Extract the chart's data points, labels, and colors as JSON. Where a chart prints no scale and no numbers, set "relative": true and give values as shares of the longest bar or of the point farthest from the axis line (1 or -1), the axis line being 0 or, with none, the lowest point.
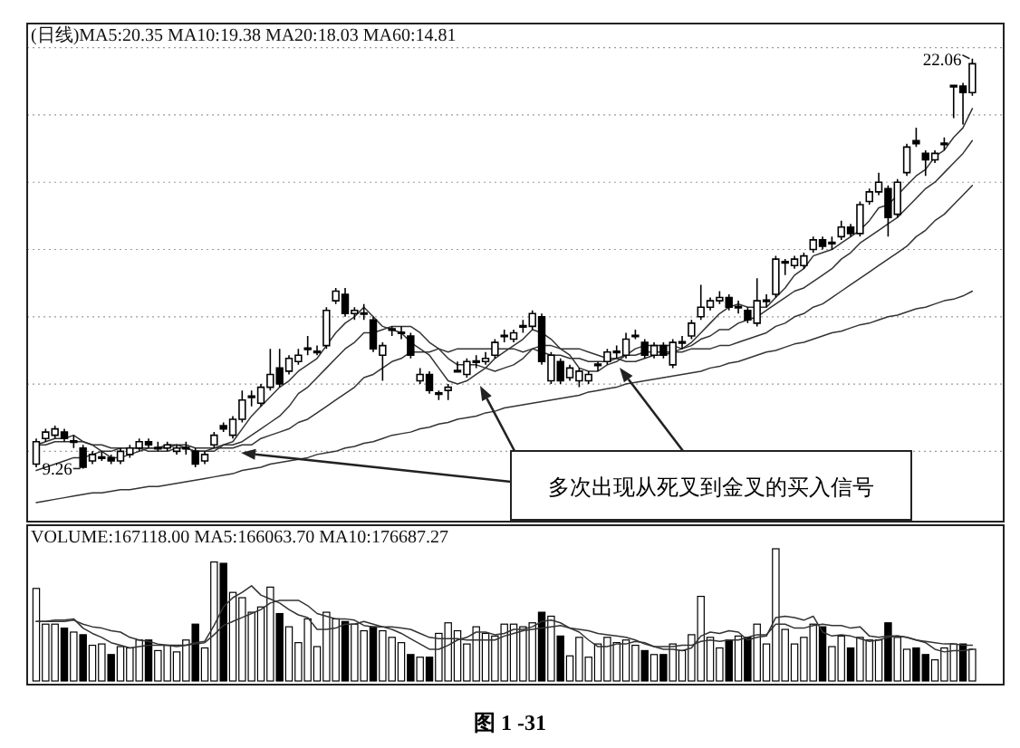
{
  "chart_data": [
    {
      "type": "candlestick",
      "title": "(日线)MA5:20.35 MA10:19.38 MA20:18.03 MA60:14.81",
      "grid": "y",
      "categories": [
        null,
        null,
        null,
        null,
        null,
        null,
        null,
        null,
        null,
        null,
        null,
        null,
        null,
        null,
        null,
        null,
        null,
        null,
        null,
        null,
        null,
        null,
        null,
        null,
        null,
        null,
        null,
        null,
        null,
        null,
        null,
        null,
        null,
        null,
        null,
        null,
        null,
        null,
        null,
        null,
        null,
        null,
        null,
        null,
        null,
        null,
        null,
        null,
        null,
        null,
        null,
        null,
        null,
        null,
        null,
        null,
        null,
        null,
        null,
        null,
        null,
        null,
        null,
        null,
        null,
        null,
        null,
        null,
        null,
        null,
        null,
        null,
        null,
        null,
        null,
        null,
        null,
        null,
        null,
        null,
        null,
        null,
        null,
        null,
        null,
        null,
        null,
        null,
        null,
        null,
        null,
        null,
        null,
        null,
        null,
        null,
        null,
        null,
        null,
        null,
        null
      ],
      "ohlc": [
        [
          9.4,
          10.2,
          9.3,
          10.1
        ],
        [
          10.2,
          10.5,
          10.1,
          10.4
        ],
        [
          10.3,
          10.6,
          10.2,
          10.5
        ],
        [
          10.4,
          10.5,
          10.1,
          10.2
        ],
        [
          10.1,
          10.3,
          9.9,
          10.1
        ],
        [
          9.9,
          10.0,
          9.26,
          9.3
        ],
        [
          9.5,
          9.8,
          9.4,
          9.7
        ],
        [
          9.6,
          9.8,
          9.5,
          9.6
        ],
        [
          9.6,
          9.7,
          9.4,
          9.5
        ],
        [
          9.5,
          9.9,
          9.4,
          9.8
        ],
        [
          9.7,
          10.0,
          9.6,
          9.9
        ],
        [
          9.9,
          10.2,
          9.8,
          10.1
        ],
        [
          10.1,
          10.2,
          9.9,
          10.0
        ],
        [
          9.9,
          10.1,
          9.8,
          9.9
        ],
        [
          9.9,
          10.1,
          9.8,
          10.0
        ],
        [
          9.8,
          10.0,
          9.7,
          9.9
        ],
        [
          9.9,
          10.1,
          9.7,
          9.9
        ],
        [
          9.8,
          9.9,
          9.3,
          9.4
        ],
        [
          9.5,
          9.8,
          9.4,
          9.7
        ],
        [
          10.0,
          10.4,
          9.9,
          10.3
        ],
        [
          10.6,
          10.7,
          10.4,
          10.5
        ],
        [
          10.3,
          10.9,
          10.2,
          10.8
        ],
        [
          10.8,
          11.7,
          10.7,
          11.4
        ],
        [
          11.5,
          11.7,
          11.2,
          11.5
        ],
        [
          11.3,
          11.9,
          11.2,
          11.8
        ],
        [
          11.8,
          13.0,
          11.7,
          12.2
        ],
        [
          12.4,
          13.0,
          11.8,
          11.9
        ],
        [
          12.3,
          12.8,
          12.2,
          12.7
        ],
        [
          12.6,
          13.0,
          12.5,
          12.8
        ],
        [
          13.0,
          13.4,
          12.8,
          13.0
        ],
        [
          12.9,
          13.1,
          12.8,
          12.9
        ],
        [
          13.1,
          14.3,
          13.0,
          14.2
        ],
        [
          14.5,
          14.9,
          14.4,
          14.8
        ],
        [
          14.7,
          14.9,
          14.0,
          14.1
        ],
        [
          14.1,
          14.3,
          13.9,
          14.2
        ],
        [
          14.1,
          14.4,
          13.9,
          14.1
        ],
        [
          13.9,
          14.0,
          12.9,
          13.0
        ],
        [
          12.8,
          13.2,
          12.0,
          13.1
        ],
        [
          13.6,
          13.7,
          13.4,
          13.6
        ],
        [
          13.5,
          13.7,
          13.3,
          13.5
        ],
        [
          13.4,
          13.5,
          12.7,
          12.8
        ],
        [
          12.0,
          12.4,
          11.9,
          12.2
        ],
        [
          12.2,
          12.3,
          11.6,
          11.7
        ],
        [
          11.6,
          11.7,
          11.4,
          11.6
        ],
        [
          11.7,
          11.9,
          11.4,
          11.8
        ],
        [
          12.3,
          12.6,
          12.3,
          12.3
        ],
        [
          12.2,
          12.7,
          12.1,
          12.6
        ],
        [
          12.6,
          12.8,
          12.4,
          12.6
        ],
        [
          12.6,
          12.9,
          12.5,
          12.7
        ],
        [
          12.8,
          13.3,
          12.7,
          13.2
        ],
        [
          13.4,
          13.6,
          13.2,
          13.4
        ],
        [
          13.3,
          13.6,
          13.2,
          13.5
        ],
        [
          13.7,
          13.9,
          13.5,
          13.7
        ],
        [
          13.7,
          14.2,
          13.6,
          14.1
        ],
        [
          14.0,
          14.1,
          12.5,
          12.6
        ],
        [
          12.0,
          12.9,
          11.9,
          12.8
        ],
        [
          12.6,
          12.7,
          11.9,
          12.0
        ],
        [
          12.1,
          12.5,
          12.0,
          12.4
        ],
        [
          12.0,
          12.4,
          11.8,
          12.3
        ],
        [
          12.0,
          12.3,
          11.9,
          12.2
        ],
        [
          12.5,
          12.6,
          12.3,
          12.5
        ],
        [
          12.6,
          13.0,
          12.5,
          12.9
        ],
        [
          12.9,
          13.1,
          12.7,
          12.9
        ],
        [
          12.8,
          13.5,
          12.7,
          13.3
        ],
        [
          13.4,
          13.6,
          13.3,
          13.4
        ],
        [
          13.2,
          13.3,
          12.7,
          12.8
        ],
        [
          12.8,
          13.2,
          12.7,
          13.1
        ],
        [
          13.1,
          13.2,
          12.7,
          12.8
        ],
        [
          12.5,
          13.3,
          12.4,
          13.2
        ],
        [
          13.2,
          13.4,
          13.0,
          13.2
        ],
        [
          13.4,
          13.9,
          13.3,
          13.8
        ],
        [
          14.0,
          15.0,
          13.9,
          14.3
        ],
        [
          14.3,
          14.6,
          14.2,
          14.5
        ],
        [
          14.5,
          14.8,
          14.4,
          14.6
        ],
        [
          14.6,
          14.7,
          14.2,
          14.3
        ],
        [
          14.3,
          14.5,
          14.1,
          14.3
        ],
        [
          14.2,
          14.3,
          13.8,
          13.9
        ],
        [
          13.8,
          15.2,
          13.7,
          14.5
        ],
        [
          14.5,
          14.7,
          14.3,
          14.5
        ],
        [
          14.7,
          15.9,
          14.6,
          15.8
        ],
        [
          15.7,
          15.8,
          15.3,
          15.7
        ],
        [
          15.6,
          15.9,
          15.5,
          15.8
        ],
        [
          15.6,
          16.0,
          15.5,
          15.9
        ],
        [
          16.1,
          16.5,
          16.0,
          16.4
        ],
        [
          16.4,
          16.5,
          16.1,
          16.2
        ],
        [
          16.3,
          16.5,
          16.1,
          16.3
        ],
        [
          16.5,
          17.0,
          16.4,
          16.8
        ],
        [
          16.8,
          16.9,
          16.5,
          16.6
        ],
        [
          16.6,
          17.6,
          16.5,
          17.5
        ],
        [
          17.6,
          18.0,
          17.5,
          17.9
        ],
        [
          17.9,
          18.5,
          17.8,
          18.2
        ],
        [
          18.0,
          18.1,
          16.5,
          17.1
        ],
        [
          17.2,
          18.3,
          17.1,
          18.2
        ],
        [
          18.5,
          19.4,
          18.4,
          19.3
        ],
        [
          19.5,
          19.9,
          19.3,
          19.4
        ],
        [
          19.1,
          19.2,
          18.4,
          18.9
        ],
        [
          18.9,
          19.2,
          18.8,
          19.1
        ],
        [
          19.4,
          19.6,
          19.2,
          19.4
        ],
        [
          21.2,
          21.2,
          20.2,
          21.2
        ],
        [
          21.2,
          21.3,
          20.0,
          21.0
        ],
        [
          21.0,
          22.06,
          20.9,
          21.9
        ]
      ],
      "series": [
        {
          "type": "line",
          "color": "#333333",
          "values": [
            10.0,
            10.1,
            10.2,
            10.2,
            10.3,
            10.1,
            10.0,
            9.8,
            9.6,
            9.6,
            9.7,
            9.8,
            9.9,
            9.9,
            10.0,
            10.0,
            9.9,
            9.8,
            9.8,
            9.8,
            10.0,
            10.1,
            10.5,
            10.9,
            11.2,
            11.5,
            11.8,
            12.0,
            12.3,
            12.5,
            12.7,
            13.1,
            13.5,
            13.8,
            14.0,
            14.3,
            14.0,
            13.7,
            13.6,
            13.5,
            13.2,
            13.0,
            12.8,
            12.4,
            12.0,
            11.9,
            12.0,
            12.2,
            12.4,
            12.7,
            12.9,
            13.1,
            13.3,
            13.6,
            13.5,
            13.3,
            13.0,
            12.8,
            12.4,
            12.3,
            12.3,
            12.5,
            12.6,
            12.8,
            13.0,
            13.1,
            13.1,
            13.1,
            13.1,
            13.0,
            13.2,
            13.5,
            13.8,
            14.1,
            14.3,
            14.4,
            14.3,
            14.3,
            14.3,
            14.6,
            14.9,
            15.3,
            15.5,
            15.9,
            16.0,
            16.1,
            16.3,
            16.5,
            16.7,
            17.0,
            17.4,
            17.5,
            17.8,
            18.1,
            18.4,
            18.6,
            19.0,
            19.2,
            19.6,
            19.9,
            20.5
          ]
        },
        {
          "type": "line",
          "color": "#333333",
          "values": [
            10.0,
            10.0,
            10.1,
            10.1,
            10.1,
            10.1,
            10.0,
            10.0,
            9.9,
            9.9,
            9.9,
            9.9,
            9.8,
            9.8,
            9.8,
            9.9,
            9.9,
            9.8,
            9.8,
            9.9,
            10.0,
            10.0,
            10.1,
            10.3,
            10.5,
            10.7,
            10.9,
            11.2,
            11.6,
            11.8,
            12.1,
            12.4,
            12.7,
            13.0,
            13.2,
            13.5,
            13.5,
            13.6,
            13.7,
            13.7,
            13.7,
            13.5,
            13.2,
            13.0,
            12.7,
            12.5,
            12.5,
            12.5,
            12.4,
            12.3,
            12.4,
            12.5,
            12.7,
            13.0,
            13.1,
            13.1,
            13.0,
            13.0,
            13.0,
            12.9,
            12.8,
            12.7,
            12.7,
            12.6,
            12.6,
            12.7,
            12.8,
            12.8,
            12.9,
            13.0,
            13.1,
            13.3,
            13.4,
            13.6,
            13.6,
            13.8,
            13.9,
            14.0,
            14.2,
            14.4,
            14.6,
            14.8,
            14.9,
            15.1,
            15.3,
            15.5,
            15.8,
            16.0,
            16.3,
            16.5,
            16.7,
            16.9,
            17.1,
            17.4,
            17.7,
            18.0,
            18.2,
            18.5,
            18.8,
            19.1,
            19.5
          ]
        },
        {
          "type": "line",
          "color": "#333333",
          "values": [
            9.2,
            9.3,
            9.4,
            9.5,
            9.6,
            9.6,
            9.7,
            9.8,
            9.8,
            9.9,
            9.9,
            9.9,
            9.9,
            9.9,
            9.9,
            10.0,
            10.0,
            9.9,
            9.9,
            9.9,
            9.9,
            9.9,
            10.0,
            10.0,
            10.2,
            10.3,
            10.4,
            10.5,
            10.7,
            10.8,
            11.0,
            11.2,
            11.4,
            11.6,
            11.8,
            12.1,
            12.2,
            12.4,
            12.6,
            12.7,
            12.9,
            12.9,
            12.9,
            13.0,
            12.9,
            13.0,
            13.0,
            13.0,
            13.0,
            13.0,
            13.0,
            13.0,
            12.9,
            13.0,
            12.9,
            12.8,
            12.8,
            12.7,
            12.7,
            12.6,
            12.6,
            12.6,
            12.7,
            12.8,
            12.8,
            12.9,
            12.9,
            12.9,
            12.9,
            12.9,
            13.0,
            13.0,
            13.0,
            13.1,
            13.1,
            13.2,
            13.3,
            13.4,
            13.5,
            13.7,
            13.8,
            14.0,
            14.1,
            14.3,
            14.4,
            14.6,
            14.8,
            15.0,
            15.2,
            15.4,
            15.6,
            15.8,
            16.0,
            16.2,
            16.5,
            16.7,
            17.0,
            17.2,
            17.5,
            17.8,
            18.1
          ]
        },
        {
          "type": "line",
          "color": "#333333",
          "values": [
            8.2,
            8.25,
            8.3,
            8.35,
            8.4,
            8.45,
            8.5,
            8.5,
            8.55,
            8.6,
            8.6,
            8.65,
            8.7,
            8.7,
            8.75,
            8.8,
            8.85,
            8.9,
            8.95,
            9.0,
            9.05,
            9.1,
            9.2,
            9.25,
            9.3,
            9.4,
            9.45,
            9.5,
            9.55,
            9.6,
            9.7,
            9.75,
            9.8,
            9.9,
            9.95,
            10.05,
            10.1,
            10.2,
            10.3,
            10.35,
            10.4,
            10.5,
            10.55,
            10.65,
            10.7,
            10.8,
            10.85,
            10.9,
            11.0,
            11.05,
            11.15,
            11.2,
            11.25,
            11.3,
            11.35,
            11.4,
            11.45,
            11.5,
            11.55,
            11.65,
            11.7,
            11.75,
            11.8,
            11.9,
            11.95,
            12.0,
            12.05,
            12.1,
            12.15,
            12.2,
            12.25,
            12.3,
            12.4,
            12.45,
            12.55,
            12.6,
            12.7,
            12.8,
            12.9,
            12.95,
            13.05,
            13.15,
            13.2,
            13.3,
            13.4,
            13.5,
            13.55,
            13.65,
            13.75,
            13.8,
            13.9,
            14.0,
            14.05,
            14.15,
            14.25,
            14.3,
            14.4,
            14.5,
            14.55,
            14.65,
            14.8
          ]
        }
      ],
      "yticks": [
        {
          "value": 9.8,
          "label": null
        },
        {
          "value": 11.9,
          "label": null
        },
        {
          "value": 14.0,
          "label": null
        },
        {
          "value": 16.1,
          "label": null
        },
        {
          "value": 18.2,
          "label": null
        },
        {
          "value": 20.3,
          "label": null
        },
        {
          "value": 22.4,
          "label": null
        }
      ],
      "annotations": [
        "22.06",
        "9.26",
        "多次出现从死叉到金叉的买入信号"
      ]
    },
    {
      "type": "bar",
      "relative": true,
      "title": "VOLUME:167118.00 MA5:166063.70 MA10:176687.27",
      "categories": [
        null,
        null,
        null,
        null,
        null,
        null,
        null,
        null,
        null,
        null,
        null,
        null,
        null,
        null,
        null,
        null,
        null,
        null,
        null,
        null,
        null,
        null,
        null,
        null,
        null,
        null,
        null,
        null,
        null,
        null,
        null,
        null,
        null,
        null,
        null,
        null,
        null,
        null,
        null,
        null,
        null,
        null,
        null,
        null,
        null,
        null,
        null,
        null,
        null,
        null,
        null,
        null,
        null,
        null,
        null,
        null,
        null,
        null,
        null,
        null,
        null,
        null,
        null,
        null,
        null,
        null,
        null,
        null,
        null,
        null,
        null,
        null,
        null,
        null,
        null,
        null,
        null,
        null,
        null,
        null,
        null,
        null,
        null,
        null,
        null,
        null,
        null,
        null,
        null,
        null,
        null,
        null,
        null,
        null,
        null,
        null,
        null,
        null,
        null,
        null,
        null
      ],
      "values": [
        0.7,
        0.43,
        0.43,
        0.4,
        0.37,
        0.35,
        0.27,
        0.28,
        0.2,
        0.26,
        0.25,
        0.31,
        0.31,
        0.23,
        0.27,
        0.22,
        0.31,
        0.43,
        0.25,
        0.9,
        0.89,
        0.67,
        0.63,
        0.52,
        0.56,
        0.71,
        0.51,
        0.41,
        0.29,
        0.47,
        0.26,
        0.52,
        0.47,
        0.45,
        0.43,
        0.38,
        0.41,
        0.38,
        0.33,
        0.29,
        0.2,
        0.18,
        0.18,
        0.36,
        0.44,
        0.38,
        0.28,
        0.41,
        0.36,
        0.34,
        0.43,
        0.43,
        0.41,
        0.44,
        0.52,
        0.49,
        0.34,
        0.19,
        0.33,
        0.18,
        0.28,
        0.33,
        0.29,
        0.31,
        0.27,
        0.23,
        0.2,
        0.2,
        0.28,
        0.23,
        0.35,
        0.64,
        0.33,
        0.25,
        0.31,
        0.34,
        0.33,
        0.43,
        0.28,
        1.0,
        0.39,
        0.28,
        0.33,
        0.43,
        0.41,
        0.26,
        0.34,
        0.25,
        0.33,
        0.31,
        0.31,
        0.44,
        0.33,
        0.24,
        0.25,
        0.2,
        0.16,
        0.25,
        0.28,
        0.28,
        0.24
      ],
      "colors": [
        "#ffffff",
        "#ffffff",
        "#ffffff",
        "#000000",
        "#ffffff",
        "#000000",
        "#ffffff",
        "#ffffff",
        "#000000",
        "#ffffff",
        "#ffffff",
        "#ffffff",
        "#000000",
        "#ffffff",
        "#ffffff",
        "#ffffff",
        "#ffffff",
        "#000000",
        "#ffffff",
        "#ffffff",
        "#000000",
        "#ffffff",
        "#ffffff",
        "#ffffff",
        "#ffffff",
        "#ffffff",
        "#000000",
        "#ffffff",
        "#ffffff",
        "#ffffff",
        "#ffffff",
        "#ffffff",
        "#ffffff",
        "#000000",
        "#ffffff",
        "#ffffff",
        "#000000",
        "#ffffff",
        "#ffffff",
        "#ffffff",
        "#000000",
        "#ffffff",
        "#000000",
        "#ffffff",
        "#ffffff",
        "#ffffff",
        "#ffffff",
        "#ffffff",
        "#ffffff",
        "#ffffff",
        "#ffffff",
        "#ffffff",
        "#ffffff",
        "#ffffff",
        "#000000",
        "#ffffff",
        "#000000",
        "#ffffff",
        "#ffffff",
        "#ffffff",
        "#ffffff",
        "#ffffff",
        "#ffffff",
        "#ffffff",
        "#ffffff",
        "#000000",
        "#ffffff",
        "#000000",
        "#ffffff",
        "#ffffff",
        "#ffffff",
        "#ffffff",
        "#ffffff",
        "#ffffff",
        "#000000",
        "#ffffff",
        "#000000",
        "#ffffff",
        "#ffffff",
        "#ffffff",
        "#ffffff",
        "#ffffff",
        "#ffffff",
        "#ffffff",
        "#000000",
        "#ffffff",
        "#ffffff",
        "#000000",
        "#ffffff",
        "#ffffff",
        "#ffffff",
        "#000000",
        "#ffffff",
        "#ffffff",
        "#000000",
        "#000000",
        "#ffffff",
        "#ffffff",
        "#ffffff",
        "#000000",
        "#ffffff"
      ],
      "series": [
        {
          "type": "line",
          "color": "#333333",
          "values": [
            0.45,
            0.45,
            0.46,
            0.46,
            0.47,
            0.4,
            0.36,
            0.33,
            0.29,
            0.27,
            0.25,
            0.26,
            0.27,
            0.27,
            0.27,
            0.27,
            0.27,
            0.29,
            0.3,
            0.42,
            0.56,
            0.63,
            0.67,
            0.72,
            0.65,
            0.62,
            0.59,
            0.54,
            0.5,
            0.48,
            0.39,
            0.39,
            0.4,
            0.43,
            0.43,
            0.45,
            0.43,
            0.41,
            0.39,
            0.36,
            0.32,
            0.28,
            0.24,
            0.24,
            0.27,
            0.31,
            0.33,
            0.37,
            0.37,
            0.35,
            0.36,
            0.39,
            0.39,
            0.41,
            0.45,
            0.46,
            0.44,
            0.4,
            0.37,
            0.31,
            0.26,
            0.26,
            0.28,
            0.28,
            0.3,
            0.29,
            0.26,
            0.24,
            0.24,
            0.23,
            0.25,
            0.34,
            0.37,
            0.36,
            0.38,
            0.37,
            0.31,
            0.33,
            0.34,
            0.48,
            0.49,
            0.48,
            0.46,
            0.49,
            0.37,
            0.34,
            0.35,
            0.34,
            0.32,
            0.3,
            0.31,
            0.33,
            0.34,
            0.33,
            0.31,
            0.29,
            0.24,
            0.22,
            0.23,
            0.23,
            0.24
          ]
        },
        {
          "type": "line",
          "color": "#333333",
          "values": [
            0.45,
            0.45,
            0.45,
            0.45,
            0.46,
            0.43,
            0.41,
            0.4,
            0.38,
            0.37,
            0.33,
            0.31,
            0.3,
            0.28,
            0.27,
            0.26,
            0.27,
            0.28,
            0.29,
            0.35,
            0.42,
            0.45,
            0.48,
            0.51,
            0.54,
            0.59,
            0.61,
            0.61,
            0.61,
            0.57,
            0.51,
            0.49,
            0.47,
            0.47,
            0.46,
            0.42,
            0.41,
            0.41,
            0.41,
            0.4,
            0.39,
            0.36,
            0.33,
            0.32,
            0.32,
            0.32,
            0.31,
            0.31,
            0.31,
            0.31,
            0.34,
            0.36,
            0.38,
            0.39,
            0.4,
            0.41,
            0.42,
            0.4,
            0.39,
            0.38,
            0.36,
            0.35,
            0.34,
            0.33,
            0.31,
            0.28,
            0.26,
            0.26,
            0.26,
            0.27,
            0.27,
            0.3,
            0.31,
            0.3,
            0.31,
            0.31,
            0.33,
            0.35,
            0.35,
            0.43,
            0.43,
            0.4,
            0.4,
            0.42,
            0.43,
            0.42,
            0.42,
            0.4,
            0.41,
            0.34,
            0.33,
            0.34,
            0.34,
            0.33,
            0.31,
            0.3,
            0.29,
            0.28,
            0.28,
            0.27,
            0.27
          ]
        }
      ],
      "annotations": [
        "图 1 -31"
      ]
    }
  ]
}
